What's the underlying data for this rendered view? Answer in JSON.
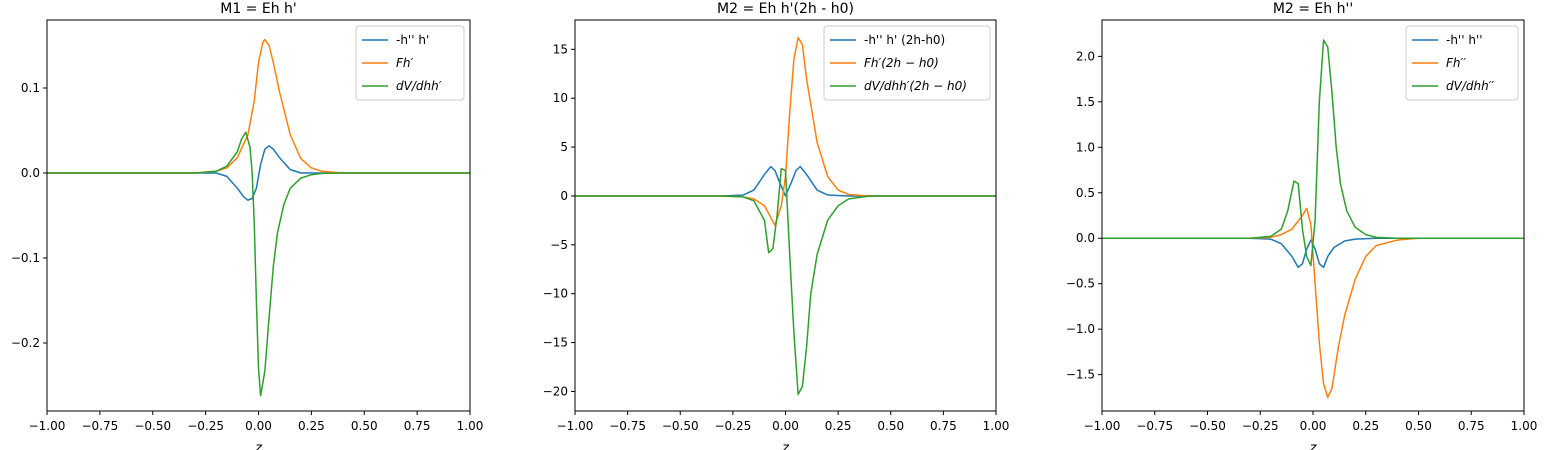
{
  "chart_data": [
    {
      "type": "line",
      "title": "M1 = Eh h'",
      "xlabel": "z",
      "ylabel": "",
      "xlim": [
        -1.0,
        1.0
      ],
      "ylim": [
        -0.28,
        0.18
      ],
      "xticks": [
        -1.0,
        -0.75,
        -0.5,
        -0.25,
        0.0,
        0.25,
        0.5,
        0.75,
        1.0
      ],
      "xtick_labels": [
        "−1.00",
        "−0.75",
        "−0.50",
        "−0.25",
        "0.00",
        "0.25",
        "0.50",
        "0.75",
        "1.00"
      ],
      "yticks": [
        -0.2,
        -0.1,
        0.0,
        0.1
      ],
      "ytick_labels": [
        "−0.2",
        "−0.1",
        "0.0",
        "0.1"
      ],
      "legend_position": "top-right",
      "series": [
        {
          "name": "-h'' h'",
          "color": "#1f77b4",
          "x": [
            -1.0,
            -0.3,
            -0.2,
            -0.15,
            -0.1,
            -0.07,
            -0.05,
            -0.03,
            -0.01,
            0.01,
            0.03,
            0.05,
            0.07,
            0.1,
            0.15,
            0.2,
            0.3,
            1.0
          ],
          "y": [
            0.0,
            0.0,
            0.0,
            -0.004,
            -0.018,
            -0.028,
            -0.032,
            -0.03,
            -0.018,
            0.01,
            0.028,
            0.032,
            0.028,
            0.018,
            0.004,
            0.0,
            0.0,
            0.0
          ]
        },
        {
          "name": "Fh′",
          "color": "#ff7f0e",
          "x": [
            -1.0,
            -0.3,
            -0.2,
            -0.15,
            -0.1,
            -0.05,
            -0.02,
            0.0,
            0.02,
            0.03,
            0.05,
            0.07,
            0.1,
            0.15,
            0.2,
            0.25,
            0.3,
            0.4,
            1.0
          ],
          "y": [
            0.0,
            0.0,
            0.002,
            0.006,
            0.018,
            0.045,
            0.085,
            0.13,
            0.153,
            0.157,
            0.15,
            0.13,
            0.095,
            0.045,
            0.017,
            0.006,
            0.002,
            0.0,
            0.0
          ]
        },
        {
          "name": "dV/dhh′",
          "color": "#2ca02c",
          "x": [
            -1.0,
            -0.3,
            -0.2,
            -0.15,
            -0.1,
            -0.08,
            -0.06,
            -0.04,
            -0.03,
            -0.02,
            -0.01,
            0.0,
            0.01,
            0.03,
            0.05,
            0.07,
            0.09,
            0.12,
            0.15,
            0.2,
            0.25,
            0.3,
            0.4,
            1.0
          ],
          "y": [
            0.0,
            0.0,
            0.002,
            0.008,
            0.025,
            0.04,
            0.048,
            0.03,
            0.0,
            -0.06,
            -0.15,
            -0.23,
            -0.262,
            -0.233,
            -0.17,
            -0.11,
            -0.07,
            -0.037,
            -0.018,
            -0.006,
            -0.002,
            -0.0005,
            0.0,
            0.0
          ]
        }
      ]
    },
    {
      "type": "line",
      "title": "M2 = Eh h'(2h - h0)",
      "xlabel": "z",
      "ylabel": "",
      "xlim": [
        -1.0,
        1.0
      ],
      "ylim": [
        -22,
        18
      ],
      "xticks": [
        -1.0,
        -0.75,
        -0.5,
        -0.25,
        0.0,
        0.25,
        0.5,
        0.75,
        1.0
      ],
      "xtick_labels": [
        "−1.00",
        "−0.75",
        "−0.50",
        "−0.25",
        "0.00",
        "0.25",
        "0.50",
        "0.75",
        "1.00"
      ],
      "yticks": [
        -20,
        -15,
        -10,
        -5,
        0,
        5,
        10,
        15
      ],
      "ytick_labels": [
        "−20",
        "−15",
        "−10",
        "−5",
        "0",
        "5",
        "10",
        "15"
      ],
      "legend_position": "top-right",
      "series": [
        {
          "name": "-h'' h' (2h-h0)",
          "color": "#1f77b4",
          "x": [
            -1.0,
            -0.3,
            -0.2,
            -0.15,
            -0.1,
            -0.07,
            -0.05,
            -0.03,
            0.0,
            0.03,
            0.05,
            0.07,
            0.1,
            0.15,
            0.2,
            0.3,
            1.0
          ],
          "y": [
            0.0,
            0.0,
            0.1,
            0.6,
            2.2,
            3.0,
            2.6,
            1.5,
            0.0,
            1.5,
            2.6,
            3.0,
            2.2,
            0.6,
            0.1,
            0.0,
            0.0
          ]
        },
        {
          "name": "Fh′(2h − h0)",
          "color": "#ff7f0e",
          "x": [
            -1.0,
            -0.3,
            -0.2,
            -0.15,
            -0.1,
            -0.05,
            -0.02,
            0.0,
            0.02,
            0.04,
            0.06,
            0.08,
            0.1,
            0.15,
            0.2,
            0.25,
            0.3,
            0.4,
            1.0
          ],
          "y": [
            0.0,
            0.0,
            -0.1,
            -0.3,
            -1.0,
            -3.0,
            -1.0,
            2.0,
            8.5,
            14.0,
            16.2,
            15.5,
            12.0,
            5.5,
            2.0,
            0.6,
            0.15,
            0.0,
            0.0
          ]
        },
        {
          "name": "dV/dhh′(2h − h0)",
          "color": "#2ca02c",
          "x": [
            -1.0,
            -0.3,
            -0.2,
            -0.15,
            -0.1,
            -0.08,
            -0.06,
            -0.04,
            -0.02,
            0.0,
            0.02,
            0.04,
            0.06,
            0.08,
            0.1,
            0.12,
            0.15,
            0.2,
            0.25,
            0.3,
            0.4,
            1.0
          ],
          "y": [
            0.0,
            0.0,
            -0.1,
            -0.5,
            -2.5,
            -5.8,
            -5.4,
            -2.0,
            2.8,
            2.6,
            -6.0,
            -14.0,
            -20.3,
            -19.5,
            -15.5,
            -10.0,
            -6.0,
            -2.5,
            -1.0,
            -0.3,
            0.0,
            0.0
          ]
        }
      ]
    },
    {
      "type": "line",
      "title": "M2 = Eh h''",
      "xlabel": "z",
      "ylabel": "",
      "xlim": [
        -1.0,
        1.0
      ],
      "ylim": [
        -1.9,
        2.4
      ],
      "xticks": [
        -1.0,
        -0.75,
        -0.5,
        -0.25,
        0.0,
        0.25,
        0.5,
        0.75,
        1.0
      ],
      "xtick_labels": [
        "−1.00",
        "−0.75",
        "−0.50",
        "−0.25",
        "0.00",
        "0.25",
        "0.50",
        "0.75",
        "1.00"
      ],
      "yticks": [
        -1.5,
        -1.0,
        -0.5,
        0.0,
        0.5,
        1.0,
        1.5,
        2.0
      ],
      "ytick_labels": [
        "−1.5",
        "−1.0",
        "−0.5",
        "0.0",
        "0.5",
        "1.0",
        "1.5",
        "2.0"
      ],
      "legend_position": "top-right",
      "series": [
        {
          "name": "-h'' h''",
          "color": "#1f77b4",
          "x": [
            -1.0,
            -0.3,
            -0.2,
            -0.15,
            -0.1,
            -0.07,
            -0.05,
            -0.03,
            -0.01,
            0.01,
            0.03,
            0.05,
            0.07,
            0.1,
            0.15,
            0.2,
            0.3,
            1.0
          ],
          "y": [
            0.0,
            0.0,
            -0.01,
            -0.06,
            -0.2,
            -0.32,
            -0.28,
            -0.12,
            -0.02,
            -0.12,
            -0.28,
            -0.32,
            -0.2,
            -0.1,
            -0.03,
            -0.01,
            0.0,
            0.0
          ]
        },
        {
          "name": "Fh′′",
          "color": "#ff7f0e",
          "x": [
            -1.0,
            -0.3,
            -0.2,
            -0.15,
            -0.1,
            -0.05,
            -0.03,
            -0.01,
            0.01,
            0.03,
            0.05,
            0.07,
            0.09,
            0.12,
            0.15,
            0.2,
            0.25,
            0.3,
            0.4,
            0.5,
            1.0
          ],
          "y": [
            0.0,
            0.0,
            0.01,
            0.04,
            0.1,
            0.25,
            0.33,
            0.15,
            -0.5,
            -1.15,
            -1.6,
            -1.75,
            -1.65,
            -1.2,
            -0.85,
            -0.45,
            -0.2,
            -0.08,
            -0.02,
            0.0,
            0.0
          ]
        },
        {
          "name": "dV/dhh′′",
          "color": "#2ca02c",
          "x": [
            -1.0,
            -0.3,
            -0.2,
            -0.15,
            -0.12,
            -0.09,
            -0.07,
            -0.05,
            -0.03,
            -0.01,
            0.01,
            0.03,
            0.05,
            0.07,
            0.09,
            0.11,
            0.13,
            0.16,
            0.2,
            0.25,
            0.3,
            0.4,
            1.0
          ],
          "y": [
            0.0,
            0.0,
            0.02,
            0.1,
            0.3,
            0.63,
            0.6,
            0.1,
            -0.2,
            -0.3,
            0.2,
            1.5,
            2.18,
            2.1,
            1.6,
            1.0,
            0.6,
            0.3,
            0.12,
            0.04,
            0.01,
            0.0,
            0.0
          ]
        }
      ]
    }
  ]
}
